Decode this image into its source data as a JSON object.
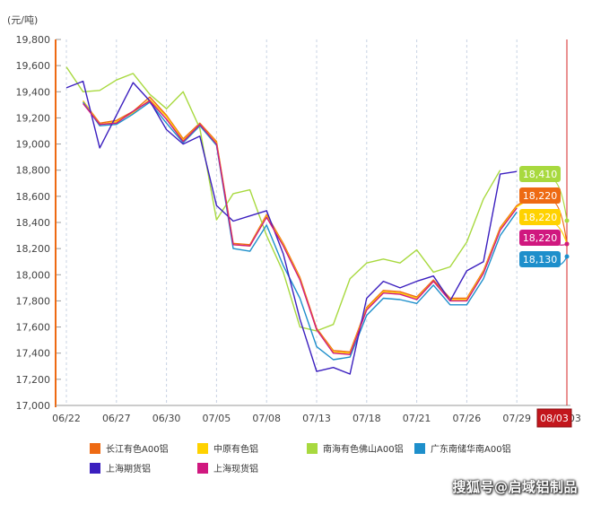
{
  "chart_data": {
    "type": "line",
    "unit_label": "(元/吨)",
    "ylim": [
      17000,
      19800
    ],
    "y_ticks": [
      17000,
      17200,
      17400,
      17600,
      17800,
      18000,
      18200,
      18400,
      18600,
      18800,
      19000,
      19200,
      19400,
      19600,
      19800
    ],
    "y_tick_labels": [
      "17,000",
      "17,200",
      "17,400",
      "17,600",
      "17,800",
      "18,000",
      "18,200",
      "18,400",
      "18,600",
      "18,800",
      "19,000",
      "19,200",
      "19,400",
      "19,600",
      "19,800"
    ],
    "x_dates": [
      "06/22",
      "06/23",
      "06/24",
      "06/27",
      "06/28",
      "06/29",
      "06/30",
      "07/01",
      "07/04",
      "07/05",
      "07/06",
      "07/07",
      "07/08",
      "07/11",
      "07/12",
      "07/13",
      "07/14",
      "07/15",
      "07/18",
      "07/19",
      "07/20",
      "07/21",
      "07/22",
      "07/25",
      "07/26",
      "07/27",
      "07/28",
      "07/29",
      "08/01",
      "08/02",
      "08/03"
    ],
    "x_tick_labels": [
      "06/22",
      "06/27",
      "06/30",
      "07/05",
      "07/08",
      "07/13",
      "07/18",
      "07/21",
      "07/26",
      "07/29",
      "08/03"
    ],
    "current_marker": "08/03",
    "grid": true,
    "legend_position": "bottom",
    "series": [
      {
        "name": "长江有色A00铝",
        "color": "#ee6a13",
        "values": [
          null,
          19330,
          19160,
          19180,
          19250,
          19360,
          19220,
          19040,
          19160,
          19020,
          18240,
          18230,
          18460,
          18240,
          17980,
          17590,
          17420,
          17410,
          17750,
          17880,
          17870,
          17830,
          17960,
          17820,
          17820,
          18030,
          18360,
          18530,
          18610,
          null,
          null
        ],
        "end_label": "18,220"
      },
      {
        "name": "中原有色铝",
        "color": "#ffd200",
        "values": [
          null,
          19330,
          19150,
          19170,
          19240,
          19340,
          19210,
          19030,
          19150,
          19010,
          18230,
          18220,
          18450,
          18230,
          17970,
          17580,
          17410,
          17400,
          17740,
          17870,
          17860,
          17820,
          17950,
          17810,
          17810,
          18020,
          18350,
          18520,
          18600,
          null,
          null
        ],
        "end_label": "18,220"
      },
      {
        "name": "南海有色佛山A00铝",
        "color": "#a8d93f",
        "values": [
          19590,
          19400,
          19410,
          19490,
          19540,
          19380,
          19270,
          19400,
          19120,
          18420,
          18620,
          18650,
          18300,
          18020,
          17600,
          17570,
          17620,
          17970,
          18090,
          18120,
          18090,
          18190,
          18020,
          18060,
          18250,
          18580,
          18800,
          null,
          null,
          null,
          null
        ],
        "end_label": "18,410"
      },
      {
        "name": "广东南储华南A00铝",
        "color": "#1e8fcb",
        "values": [
          null,
          19320,
          19140,
          19150,
          19230,
          19320,
          19160,
          19010,
          19140,
          18990,
          18200,
          18180,
          18380,
          18070,
          17820,
          17450,
          17350,
          17370,
          17690,
          17820,
          17810,
          17780,
          17920,
          17770,
          17770,
          17970,
          18300,
          18480,
          null,
          null,
          null
        ],
        "end_label": "18,130"
      },
      {
        "name": "上海期货铝",
        "color": "#3b1fbf",
        "values": [
          19430,
          19480,
          18970,
          19220,
          19470,
          19330,
          19110,
          19000,
          19060,
          18530,
          18410,
          18450,
          18490,
          18160,
          17660,
          17260,
          17290,
          17240,
          17820,
          17950,
          17900,
          17950,
          17990,
          17800,
          18030,
          18100,
          18770,
          18790,
          null,
          null,
          null
        ],
        "end_label": null
      },
      {
        "name": "上海现货铝",
        "color": "#d0187f",
        "values": [
          null,
          19310,
          19150,
          19160,
          19250,
          19330,
          19190,
          19020,
          19150,
          19000,
          18230,
          18220,
          18440,
          18220,
          17960,
          17580,
          17400,
          17390,
          17730,
          17860,
          17850,
          17810,
          17950,
          17800,
          17800,
          18010,
          18340,
          18510,
          null,
          null,
          null
        ],
        "end_label": "18,220"
      }
    ]
  },
  "end_labels": [
    {
      "text": "18,410",
      "color": "#a8d93f"
    },
    {
      "text": "18,220",
      "color": "#ee6a13"
    },
    {
      "text": "18,220",
      "color": "#ffd200"
    },
    {
      "text": "18,220",
      "color": "#d0187f"
    },
    {
      "text": "18,130",
      "color": "#1e8fcb"
    }
  ],
  "watermark": "搜狐号@启域铝制品"
}
